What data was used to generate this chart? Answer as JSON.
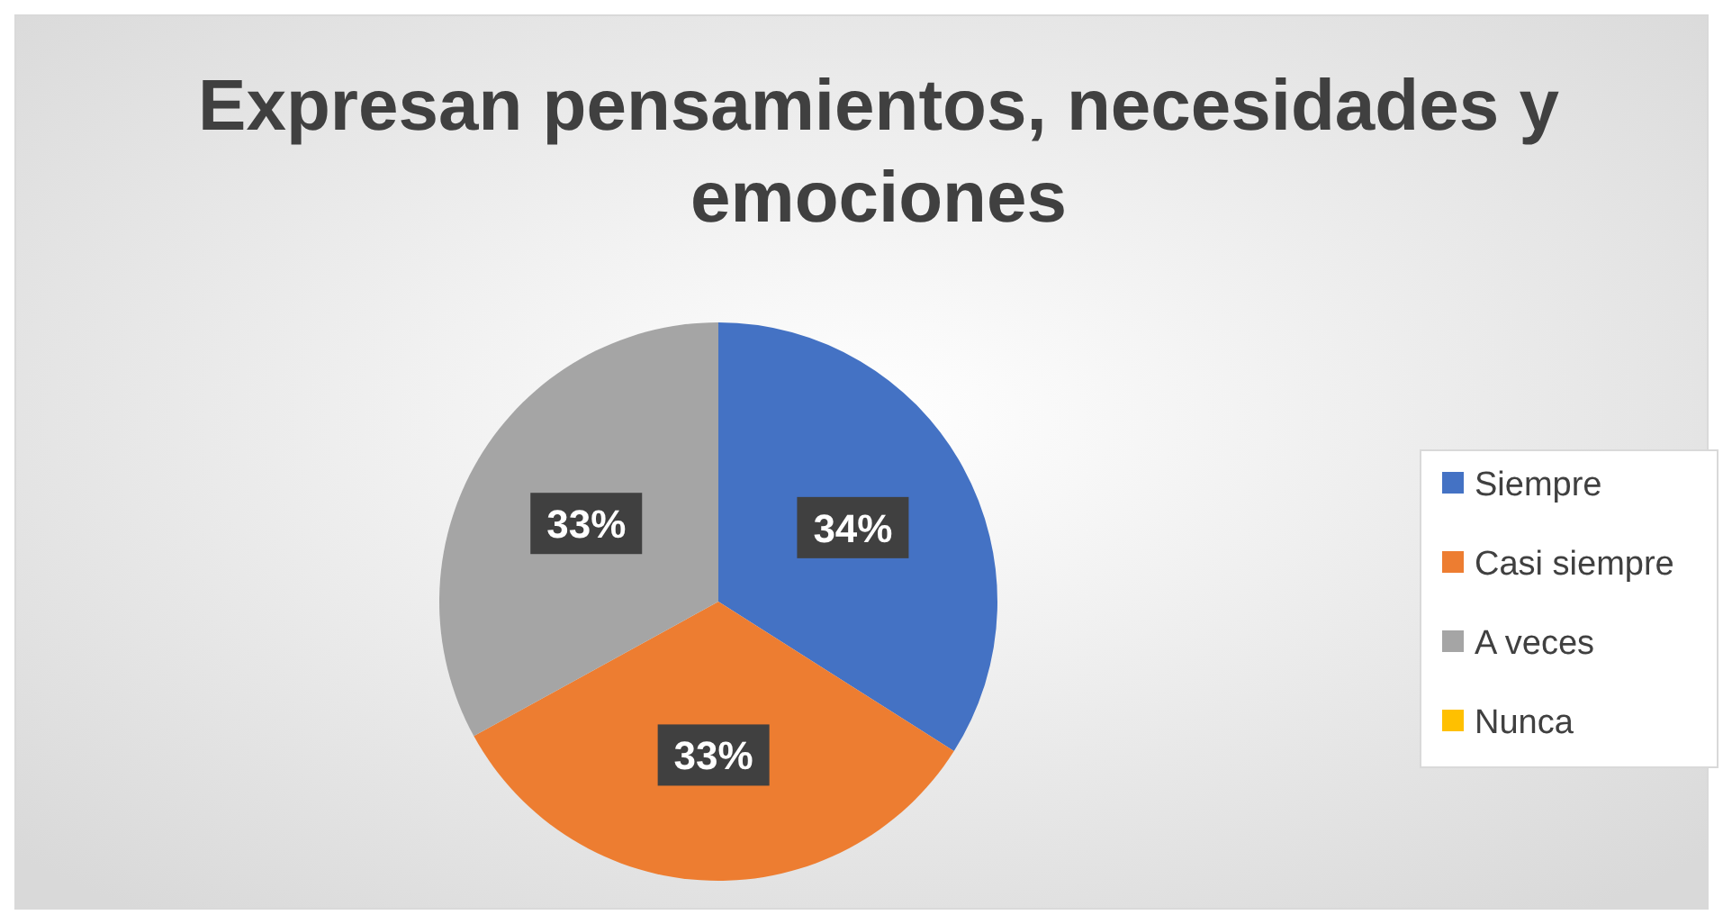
{
  "chart_data": {
    "type": "pie",
    "title": "Expresan pensamientos,  necesidades y emociones",
    "categories": [
      "Siempre",
      "Casi siempre",
      "A veces",
      "Nunca"
    ],
    "values": [
      34,
      33,
      33,
      0
    ],
    "colors": [
      "#4472c4",
      "#ed7d31",
      "#a5a5a5",
      "#ffc000"
    ],
    "value_labels": [
      "34%",
      "33%",
      "33%",
      null
    ],
    "legend": "right"
  }
}
